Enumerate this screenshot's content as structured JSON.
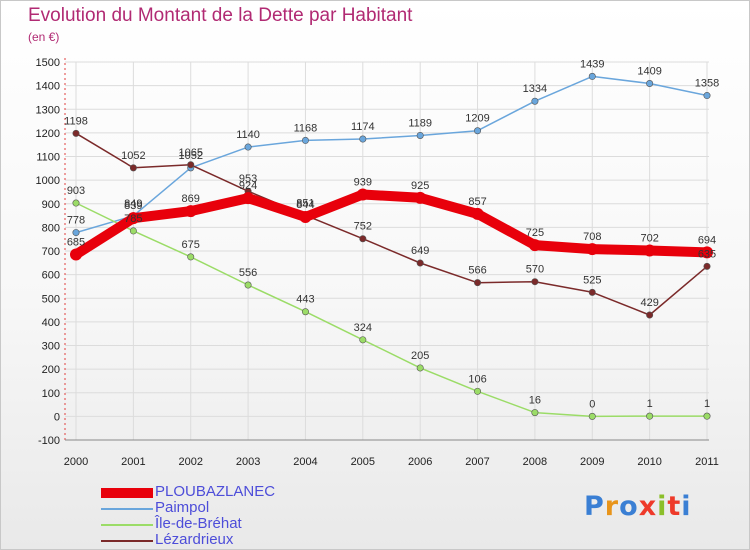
{
  "title": "Evolution du Montant de la Dette par Habitant",
  "unit": "(en €)",
  "logo_text": "Proxiti",
  "logo_colors": [
    "#3a7fd4",
    "#e8941a",
    "#3a7fd4",
    "#ee3a2a",
    "#8bbf2a",
    "#ee3a2a",
    "#3a7fd4"
  ],
  "chart_data": {
    "type": "line",
    "x": [
      "2000",
      "2001",
      "2002",
      "2003",
      "2004",
      "2005",
      "2006",
      "2007",
      "2008",
      "2009",
      "2010",
      "2011"
    ],
    "ylim": [
      -100,
      1500
    ],
    "yticks": [
      -100,
      0,
      100,
      200,
      300,
      400,
      500,
      600,
      700,
      800,
      900,
      1000,
      1100,
      1200,
      1300,
      1400,
      1500
    ],
    "grid": true,
    "legend_position": "bottom-left",
    "series": [
      {
        "name": "PLOUBAZLANEC",
        "color": "#e8000b",
        "values": [
          685,
          839,
          869,
          924,
          844,
          939,
          925,
          857,
          725,
          708,
          702,
          694
        ]
      },
      {
        "name": "Paimpol",
        "color": "#6aa6dc",
        "values": [
          778,
          849,
          1052,
          1140,
          1168,
          1174,
          1189,
          1209,
          1334,
          1439,
          1409,
          1358
        ]
      },
      {
        "name": "Île-de-Bréhat",
        "color": "#9bdc67",
        "values": [
          903,
          785,
          675,
          556,
          443,
          324,
          205,
          106,
          16,
          0,
          1,
          1
        ]
      },
      {
        "name": "Lézardrieux",
        "color": "#7b2a2a",
        "values": [
          1198,
          1052,
          1065,
          953,
          851,
          752,
          649,
          566,
          570,
          525,
          429,
          635
        ]
      }
    ]
  }
}
